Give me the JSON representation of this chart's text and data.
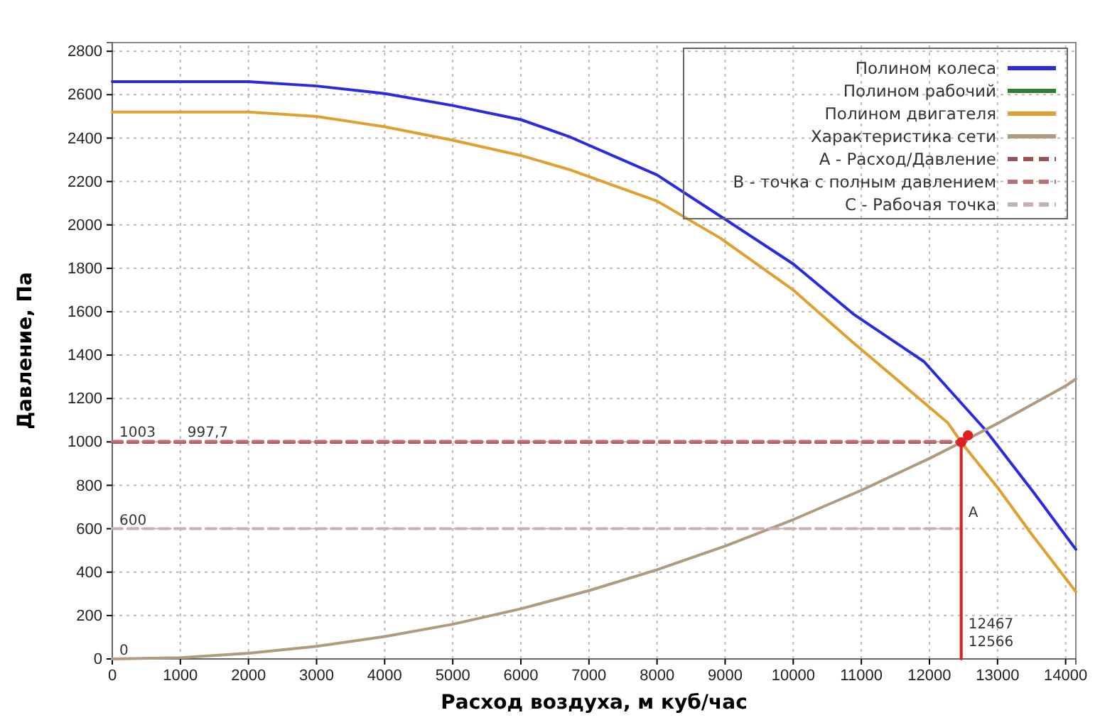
{
  "chart_data": {
    "type": "line",
    "xlabel": "Расход воздуха, м куб/час",
    "ylabel": "Давление, Па",
    "xlim": [
      0,
      14150
    ],
    "ylim": [
      0,
      2840
    ],
    "xticks": [
      0,
      1000,
      2000,
      3000,
      4000,
      5000,
      6000,
      7000,
      8000,
      9000,
      10000,
      11000,
      12000,
      13000,
      14000
    ],
    "yticks": [
      0,
      200,
      400,
      600,
      800,
      1000,
      1200,
      1400,
      1600,
      1800,
      2000,
      2200,
      2400,
      2600,
      2800
    ],
    "grid": true,
    "legend": "top right",
    "series": [
      {
        "name": "Полином колеса",
        "color": "#2a2ae0",
        "x": [
          0,
          2000,
          3000,
          4000,
          5000,
          6000,
          6700,
          8000,
          8930,
          10000,
          10880,
          11920,
          12820,
          13530,
          14150
        ],
        "values": [
          2660,
          2660,
          2640,
          2605,
          2550,
          2485,
          2408,
          2230,
          2040,
          1820,
          1590,
          1370,
          1056,
          767,
          505
        ]
      },
      {
        "name": "Полином рабочий",
        "color": "#2e7d32"
      },
      {
        "name": "Полином двигателя",
        "color": "#e0a030",
        "x": [
          0,
          2000,
          3000,
          4000,
          5000,
          6000,
          6700,
          8000,
          8930,
          10000,
          10880,
          12270,
          12467,
          13000,
          13500,
          14150
        ],
        "values": [
          2520,
          2520,
          2500,
          2452,
          2390,
          2320,
          2256,
          2110,
          1939,
          1700,
          1458,
          1088,
          998,
          790,
          575,
          310
        ]
      },
      {
        "name": "Характеристика сети",
        "color": "#b09a80",
        "x": [
          0,
          1000,
          2000,
          3000,
          4000,
          5000,
          6000,
          7000,
          8000,
          9000,
          10000,
          11000,
          12000,
          12467,
          13000,
          14000,
          14150
        ],
        "values": [
          0,
          6,
          26,
          58,
          103,
          160,
          231,
          315,
          411,
          520,
          642,
          777,
          924,
          998,
          1085,
          1258,
          1290
        ]
      },
      {
        "name": "А - Расход/Давление",
        "color": "#a05050",
        "line_style": "dashed",
        "x": [
          0,
          12467
        ],
        "values": [
          998,
          998
        ]
      },
      {
        "name": "В - точка с полным давлением",
        "color": "#c07070",
        "line_style": "dashed",
        "x": [
          0,
          12566
        ],
        "values": [
          1003,
          1003
        ]
      },
      {
        "name": "С - Рабочая точка",
        "color": "#c8b0b0",
        "line_style": "dashed",
        "x": [
          0,
          12467
        ],
        "values": [
          600,
          600
        ]
      },
      {
        "color": "#e02020",
        "x": [
          12467,
          12467
        ],
        "values": [
          0,
          998
        ]
      },
      {
        "type": "scatter",
        "color": "#e02020",
        "marker": "circle",
        "x": [
          12467,
          12566
        ],
        "values": [
          998,
          1030
        ]
      }
    ],
    "annotations": [
      {
        "text": "1003",
        "x": 0,
        "y": 1003
      },
      {
        "text": "997,7",
        "x": 1000,
        "y": 1003
      },
      {
        "text": "600",
        "x": 0,
        "y": 600
      },
      {
        "text": "0",
        "x": 0,
        "y": 0
      },
      {
        "text": "А",
        "x": 12467,
        "y": 636
      },
      {
        "text": "12467",
        "x": 12467,
        "y": 120
      },
      {
        "text": "12566",
        "x": 12467,
        "y": 40
      }
    ]
  }
}
